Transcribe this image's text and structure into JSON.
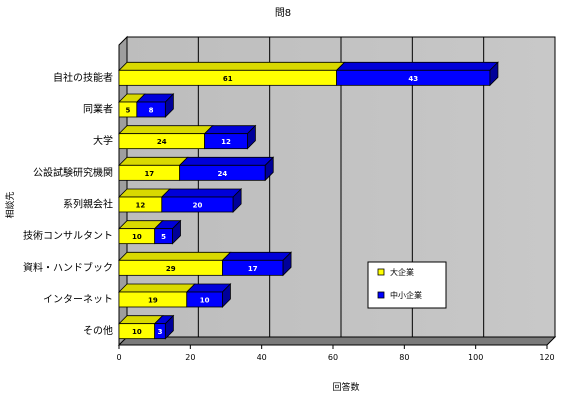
{
  "chart_data": {
    "type": "bar",
    "orientation": "horizontal",
    "stacked": true,
    "three_d": true,
    "title": "問8",
    "xlabel": "回答数",
    "ylabel": "相談先",
    "xlim": [
      0,
      120
    ],
    "xticks": [
      "0",
      "20",
      "40",
      "60",
      "80",
      "100",
      "120"
    ],
    "grid": true,
    "legend_position": "right",
    "categories": [
      "自社の技能者",
      "同業者",
      "大学",
      "公設試験研究機関",
      "系列親会社",
      "技術コンサルタント",
      "資料・ハンドブック",
      "インターネット",
      "その他"
    ],
    "series": [
      {
        "name": "大企業",
        "color": "#ffff00",
        "label_color": "#000000",
        "values": [
          61,
          5,
          24,
          17,
          12,
          10,
          29,
          19,
          10
        ]
      },
      {
        "name": "中小企業",
        "color": "#0000ff",
        "label_color": "#ffffff",
        "values": [
          43,
          8,
          12,
          24,
          20,
          5,
          17,
          10,
          3
        ]
      }
    ]
  }
}
